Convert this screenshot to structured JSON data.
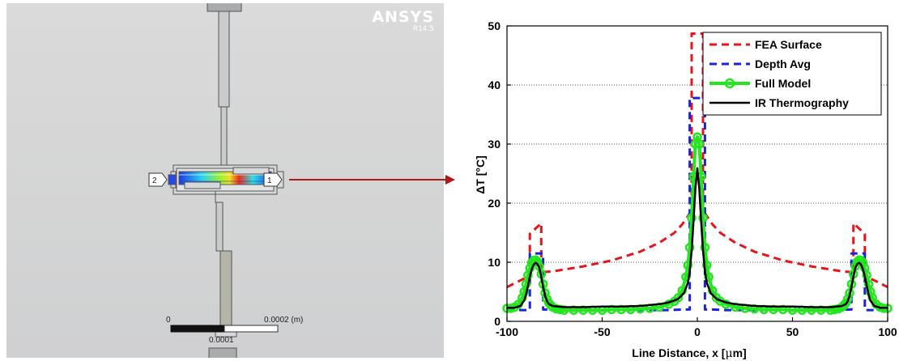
{
  "ansys": {
    "logo": "ANSYS",
    "version": "R14.5",
    "port_labels": [
      "1",
      "2"
    ],
    "scale": {
      "start": "0",
      "end": "0.0002 (m)",
      "mid": "0.0001"
    }
  },
  "colors": {
    "fea_surface": "#e8141b",
    "depth_avg": "#1a22e0",
    "full_model": "#22e61e",
    "ir_thermography": "#000000",
    "arrow": "#b01818"
  },
  "chart_data": {
    "type": "line",
    "xlabel_prefix": "Line Distance, x [",
    "xlabel_unit_mu": "μ",
    "xlabel_suffix": "m]",
    "ylabel": "ΔT [°C]",
    "xlim": [
      -100,
      100
    ],
    "ylim": [
      0,
      50
    ],
    "x_ticks": [
      -100,
      -50,
      0,
      50,
      100
    ],
    "y_ticks": [
      0,
      10,
      20,
      30,
      40,
      50
    ],
    "grid": "horizontal dotted",
    "legend_position": "top-right",
    "series": [
      {
        "name": "FEA Surface",
        "style": "dashed",
        "x": [
          -100,
          -95,
          -90,
          -88,
          -88,
          -82,
          -82,
          -75,
          -60,
          -45,
          -30,
          -20,
          -12,
          -8,
          -5,
          -3,
          -3,
          3,
          3,
          5,
          8,
          12,
          20,
          30,
          45,
          60,
          75,
          82,
          82,
          88,
          88,
          90,
          95,
          100
        ],
        "y": [
          5.8,
          6.6,
          7.4,
          7.9,
          14.8,
          16.6,
          8.3,
          8.5,
          9.3,
          10.3,
          11.8,
          13.3,
          15.0,
          16.4,
          17.8,
          18.8,
          48.7,
          48.7,
          18.8,
          17.8,
          16.4,
          15.0,
          13.3,
          11.8,
          10.3,
          9.3,
          8.5,
          8.3,
          16.6,
          14.8,
          7.9,
          7.4,
          6.6,
          5.8
        ]
      },
      {
        "name": "Depth Avg",
        "style": "dashed",
        "x": [
          -100,
          -92,
          -88,
          -88,
          -81,
          -81,
          -70,
          -50,
          -30,
          -15,
          -8,
          -4,
          -4,
          4,
          4,
          8,
          15,
          30,
          50,
          70,
          81,
          81,
          88,
          88,
          92,
          100
        ],
        "y": [
          2.0,
          1.9,
          1.9,
          11.5,
          11.5,
          2.0,
          1.9,
          1.9,
          1.9,
          1.9,
          2.0,
          2.0,
          37.8,
          37.8,
          2.0,
          2.0,
          1.9,
          1.9,
          1.9,
          1.9,
          2.0,
          11.5,
          11.5,
          1.9,
          1.9,
          2.0
        ]
      },
      {
        "name": "Full Model",
        "style": "line-with-circle-markers",
        "x": [
          -100,
          -98,
          -96,
          -94,
          -92,
          -91,
          -90,
          -89,
          -88,
          -87,
          -86,
          -85,
          -84,
          -83,
          -82,
          -81,
          -80,
          -79,
          -78,
          -77,
          -76,
          -74,
          -72,
          -70,
          -65,
          -60,
          -55,
          -50,
          -45,
          -40,
          -35,
          -30,
          -25,
          -20,
          -15,
          -12,
          -10,
          -8,
          -6,
          -5,
          -4,
          -3,
          -2,
          -1,
          0,
          1,
          2,
          3,
          4,
          5,
          6,
          8,
          10,
          12,
          15,
          20,
          25,
          30,
          35,
          40,
          45,
          50,
          55,
          60,
          65,
          70,
          72,
          74,
          76,
          77,
          78,
          79,
          80,
          81,
          82,
          83,
          84,
          85,
          86,
          87,
          88,
          89,
          90,
          91,
          92,
          94,
          96,
          98,
          100
        ],
        "y": [
          2.2,
          2.2,
          2.4,
          2.9,
          4.0,
          5.0,
          6.3,
          7.8,
          9.0,
          9.9,
          10.3,
          10.4,
          10.1,
          9.3,
          8.0,
          6.3,
          4.8,
          3.8,
          3.1,
          2.7,
          2.4,
          2.1,
          2.0,
          1.9,
          1.9,
          1.9,
          1.9,
          1.9,
          2.0,
          2.0,
          2.0,
          2.1,
          2.2,
          2.4,
          2.9,
          3.4,
          4.0,
          5.2,
          7.5,
          9.5,
          12.5,
          17.5,
          24.5,
          30.0,
          31.2,
          30.0,
          24.5,
          17.5,
          12.5,
          9.5,
          7.5,
          5.2,
          4.0,
          3.4,
          2.9,
          2.4,
          2.2,
          2.1,
          2.0,
          2.0,
          2.0,
          1.9,
          1.9,
          1.9,
          1.9,
          1.9,
          2.0,
          2.1,
          2.4,
          2.7,
          3.1,
          3.8,
          4.8,
          6.3,
          8.0,
          9.3,
          10.1,
          10.4,
          10.3,
          9.9,
          9.0,
          7.8,
          6.3,
          5.0,
          4.0,
          2.9,
          2.4,
          2.2,
          2.2
        ]
      },
      {
        "name": "IR Thermography",
        "style": "solid",
        "x": [
          -100,
          -96,
          -93,
          -91,
          -90,
          -89,
          -88,
          -87,
          -86,
          -85,
          -84,
          -83,
          -82,
          -81,
          -80,
          -79,
          -78,
          -76,
          -73,
          -70,
          -60,
          -50,
          -40,
          -30,
          -20,
          -15,
          -10,
          -7,
          -5,
          -4,
          -3,
          -2,
          -1,
          0,
          1,
          2,
          3,
          4,
          5,
          7,
          10,
          15,
          20,
          30,
          40,
          50,
          60,
          70,
          73,
          76,
          78,
          79,
          80,
          81,
          82,
          83,
          84,
          85,
          86,
          87,
          88,
          89,
          90,
          91,
          93,
          96,
          100
        ],
        "y": [
          2.3,
          2.3,
          2.6,
          3.5,
          4.5,
          6.0,
          7.6,
          8.8,
          9.6,
          9.9,
          9.7,
          9.0,
          7.5,
          5.8,
          4.3,
          3.4,
          2.9,
          2.6,
          2.5,
          2.4,
          2.4,
          2.5,
          2.5,
          2.6,
          2.9,
          3.2,
          3.8,
          4.8,
          6.5,
          8.5,
          12.0,
          17.0,
          22.5,
          25.9,
          22.5,
          17.0,
          12.0,
          8.5,
          6.5,
          4.8,
          3.8,
          3.2,
          2.9,
          2.6,
          2.5,
          2.5,
          2.4,
          2.4,
          2.5,
          2.6,
          2.9,
          3.4,
          4.3,
          5.8,
          7.5,
          9.0,
          9.7,
          9.9,
          9.6,
          8.8,
          7.6,
          6.0,
          4.5,
          3.5,
          2.6,
          2.3,
          2.3
        ]
      }
    ]
  }
}
